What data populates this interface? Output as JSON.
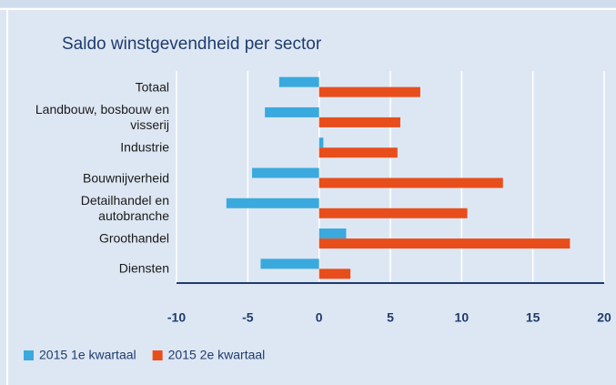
{
  "chart_data": {
    "type": "bar",
    "orientation": "horizontal",
    "title": "Saldo winstgevendheid per sector",
    "categories": [
      "Totaal",
      "Landbouw, bosbouw en visserij",
      "Industrie",
      "Bouwnijverheid",
      "Detailhandel en autobranche",
      "Groothandel",
      "Diensten"
    ],
    "series": [
      {
        "name": "2015 1e kwartaal",
        "color": "#3aa9dd",
        "values": [
          -2.8,
          -3.8,
          0.3,
          -4.7,
          -6.5,
          1.9,
          -4.1
        ]
      },
      {
        "name": "2015 2e kwartaal",
        "color": "#e84e1b",
        "values": [
          7.1,
          5.7,
          5.5,
          12.9,
          10.4,
          17.6,
          2.2
        ]
      }
    ],
    "xlim": [
      -10,
      20
    ],
    "xticks": [
      -10,
      -5,
      0,
      5,
      10,
      15,
      20
    ],
    "grid": true
  }
}
